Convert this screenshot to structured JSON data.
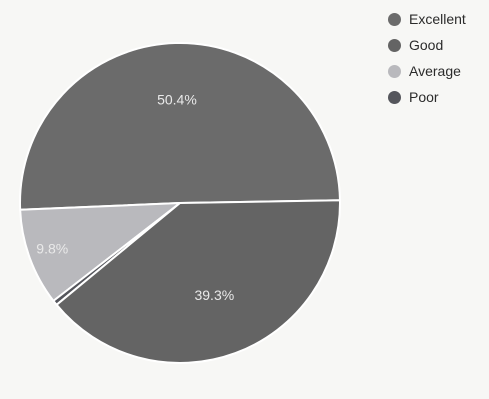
{
  "chart_data": {
    "type": "pie",
    "title": "",
    "categories": [
      "Excellent",
      "Good",
      "Average",
      "Poor"
    ],
    "values": [
      50.4,
      39.3,
      9.8,
      0.5
    ],
    "data_labels": [
      "50.4%",
      "39.3%",
      "9.8%",
      ""
    ],
    "colors": [
      "#6b6b6b",
      "#646464",
      "#b9b9bd",
      "#55565c"
    ],
    "legend": {
      "placement": "top-right",
      "entries": [
        "Excellent",
        "Good",
        "Average",
        "Poor"
      ]
    }
  }
}
